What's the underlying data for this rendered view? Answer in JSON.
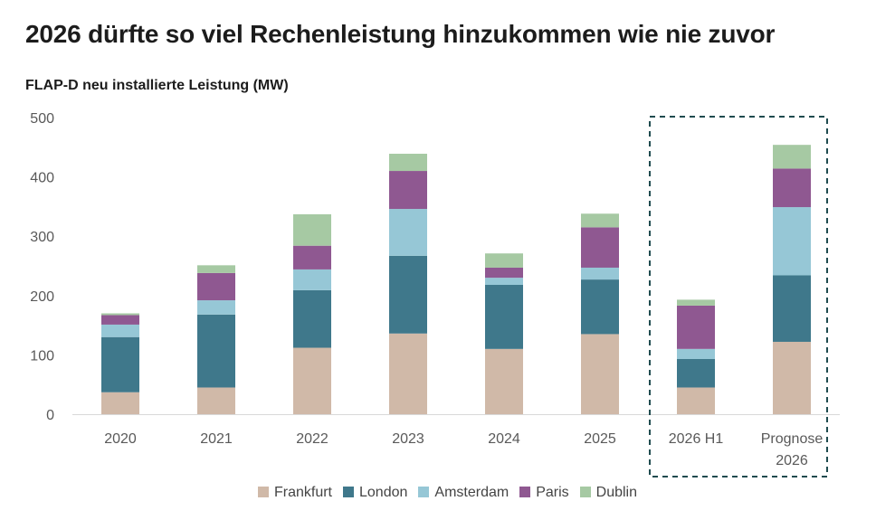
{
  "chart_data": {
    "type": "bar",
    "stacked": true,
    "title": "2026 dürfte so viel Rechenleistung hinzukommen wie nie zuvor",
    "subtitle": "FLAP-D neu installierte Leistung (MW)",
    "categories": [
      "2020",
      "2021",
      "2022",
      "2023",
      "2024",
      "2025",
      "2026 H1",
      "Prognose\n2026"
    ],
    "highlight_categories": [
      "2026 H1",
      "Prognose\n2026"
    ],
    "ylim": [
      0,
      500
    ],
    "yticks": [
      "0",
      "100",
      "200",
      "300",
      "400",
      "500"
    ],
    "legend_position": "bottom",
    "series": [
      {
        "name": "Frankfurt",
        "color": "#d0b9a8",
        "values": [
          37,
          45,
          112,
          136,
          110,
          135,
          45,
          122
        ]
      },
      {
        "name": "London",
        "color": "#3f788b",
        "values": [
          93,
          123,
          97,
          131,
          108,
          92,
          48,
          112
        ]
      },
      {
        "name": "Amsterdam",
        "color": "#96c7d6",
        "values": [
          21,
          24,
          35,
          79,
          12,
          20,
          17,
          115
        ]
      },
      {
        "name": "Paris",
        "color": "#8f5891",
        "values": [
          16,
          46,
          40,
          64,
          17,
          68,
          73,
          65
        ]
      },
      {
        "name": "Dublin",
        "color": "#a6c9a3",
        "values": [
          3,
          13,
          53,
          29,
          24,
          23,
          10,
          40
        ]
      }
    ]
  }
}
